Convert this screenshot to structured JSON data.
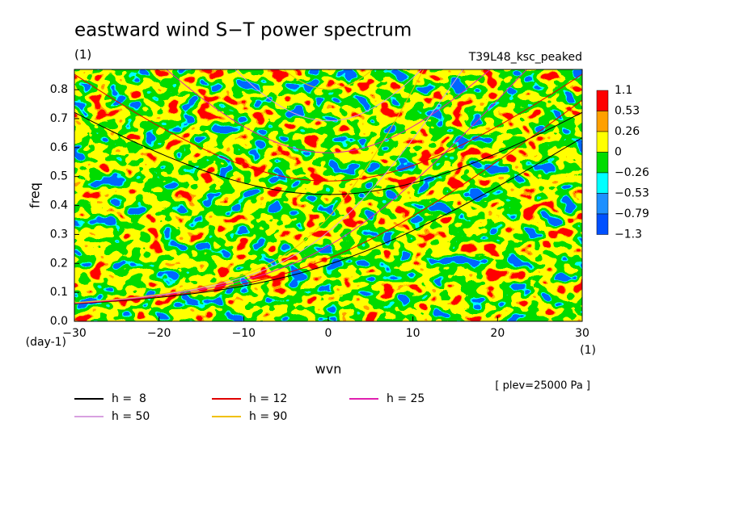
{
  "chart_data": {
    "type": "contour",
    "title": "eastward wind S−T power spectrum",
    "subtitle": "(1)",
    "run_label": "T39L48_ksc_peaked",
    "x_label": "wvn",
    "y_label": "freq",
    "x_unit": "(1)",
    "y_unit": "(day-1)",
    "note": "[ plev=25000 Pa ]",
    "xlim": [
      -30,
      30
    ],
    "xticks": [
      {
        "value": -30,
        "label": "−30"
      },
      {
        "value": -20,
        "label": "−20"
      },
      {
        "value": -10,
        "label": "−10"
      },
      0,
      10,
      20,
      30
    ],
    "ylim": [
      0,
      0.87
    ],
    "yticks": [
      {
        "value": 0,
        "label": "0.0"
      },
      0.1,
      0.2,
      0.3,
      0.4,
      0.5,
      0.6,
      0.7,
      0.8
    ],
    "levels": [
      1.1,
      0.53,
      0.26,
      0,
      {
        "value": -0.26,
        "label": "−0.26"
      },
      {
        "value": -0.53,
        "label": "−0.53"
      },
      {
        "value": -0.79,
        "label": "−0.79"
      },
      {
        "value": -1.3,
        "label": "−1.3"
      }
    ],
    "level_colors": [
      "#ff0000",
      "#ffa000",
      "#ffff00",
      "#00dc00",
      "#00ffff",
      "#1e90ff",
      "#0050ff"
    ],
    "series": [
      {
        "name": "h =  8",
        "value": 8,
        "color": "#000000"
      },
      {
        "name": "h = 12",
        "value": 12,
        "color": "#e00000"
      },
      {
        "name": "h = 25",
        "value": 25,
        "color": "#e020b0"
      },
      {
        "name": "h = 50",
        "value": 50,
        "color": "#d8a0e0"
      },
      {
        "name": "h = 90",
        "value": 90,
        "color": "#f0c000"
      }
    ]
  }
}
